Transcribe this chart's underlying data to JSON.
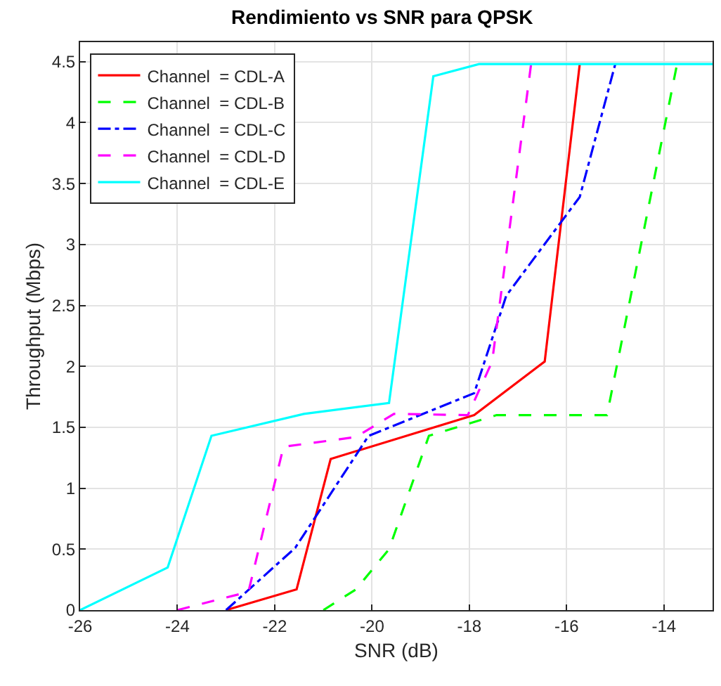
{
  "chart_data": {
    "type": "line",
    "title": "Rendimiento vs SNR para QPSK",
    "xlabel": "SNR (dB)",
    "ylabel": "Throughput (Mbps)",
    "xlim": [
      -26,
      -13
    ],
    "xticks": [
      -26,
      -24,
      -22,
      -20,
      -18,
      -16,
      -14
    ],
    "ylim": [
      0,
      4.66
    ],
    "yticks": [
      0,
      0.5,
      1,
      1.5,
      2,
      2.5,
      3,
      3.5,
      4,
      4.5
    ],
    "grid": true,
    "legend": "top left",
    "marker": "none",
    "series": [
      {
        "name": "Channel  = CDL-A",
        "color": "#ff0000",
        "line_style": "solid",
        "x": [
          -23.0,
          -21.55,
          -20.85,
          -17.9,
          -16.45,
          -15.73
        ],
        "values": [
          0,
          0.17,
          1.24,
          1.6,
          2.04,
          4.48
        ]
      },
      {
        "name": "Channel  = CDL-B",
        "color": "#00ff00",
        "line_style": "dashed",
        "x": [
          -21.0,
          -20.33,
          -19.65,
          -18.83,
          -17.44,
          -15.17,
          -13.73
        ],
        "values": [
          0,
          0.17,
          0.5,
          1.43,
          1.6,
          1.6,
          4.48
        ]
      },
      {
        "name": "Channel  = CDL-C",
        "color": "#0000ff",
        "line_style": "dashdot",
        "x": [
          -23.0,
          -21.58,
          -20.07,
          -17.9,
          -17.24,
          -15.73,
          -15.0
        ],
        "values": [
          0,
          0.51,
          1.43,
          1.78,
          2.58,
          3.39,
          4.48
        ]
      },
      {
        "name": "Channel  = CDL-D",
        "color": "#ff00ff",
        "line_style": "dashed",
        "x": [
          -24.0,
          -22.54,
          -21.82,
          -20.33,
          -19.55,
          -18.03,
          -17.53,
          -16.73
        ],
        "values": [
          0,
          0.15,
          1.34,
          1.42,
          1.61,
          1.6,
          2.04,
          4.48
        ]
      },
      {
        "name": "Channel  = CDL-E",
        "color": "#00ffff",
        "line_style": "solid",
        "x": [
          -26.0,
          -24.2,
          -23.3,
          -21.4,
          -19.65,
          -18.74,
          -17.8,
          -13.0
        ],
        "values": [
          0,
          0.35,
          1.43,
          1.61,
          1.7,
          4.38,
          4.48,
          4.48
        ]
      }
    ]
  }
}
